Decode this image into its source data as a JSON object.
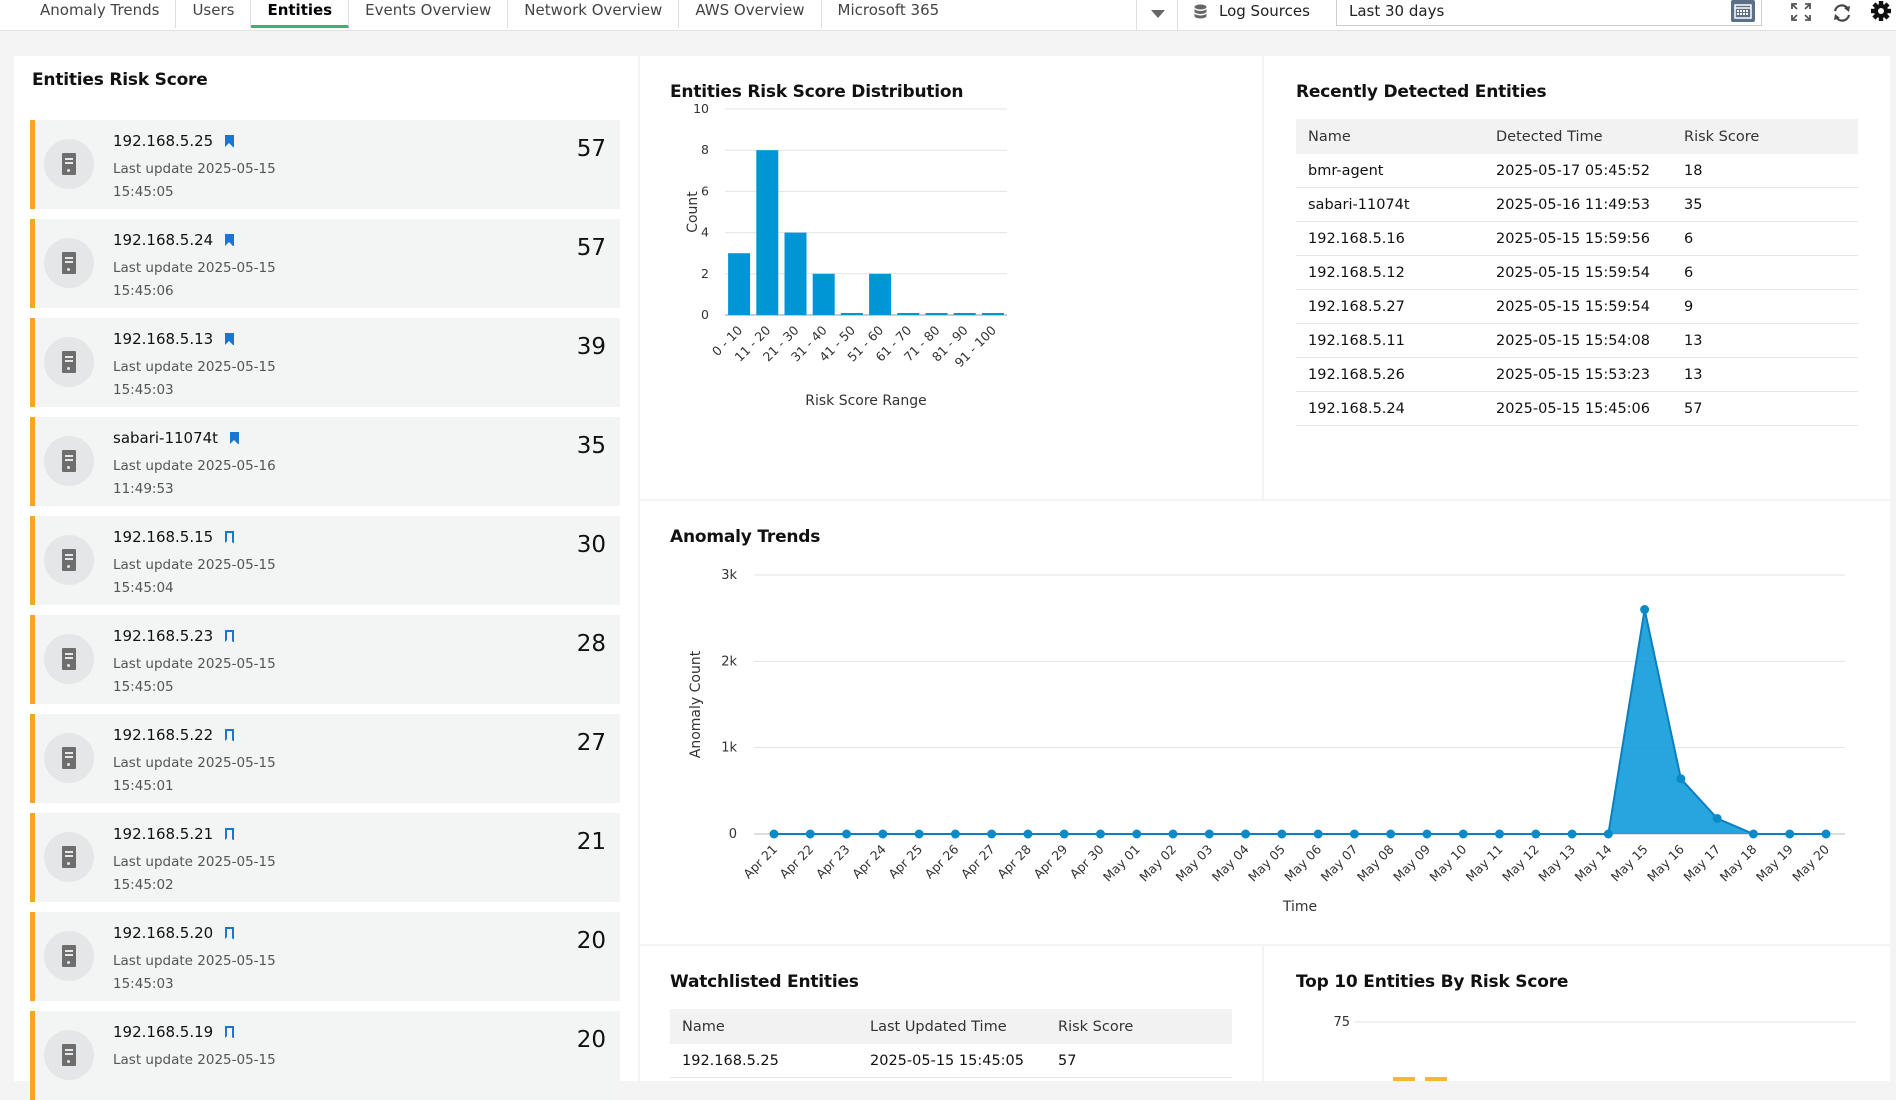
{
  "tabs": [
    {
      "label": "Anomaly Trends",
      "active": false
    },
    {
      "label": "Users",
      "active": false
    },
    {
      "label": "Entities",
      "active": true
    },
    {
      "label": "Events Overview",
      "active": false
    },
    {
      "label": "Network Overview",
      "active": false
    },
    {
      "label": "AWS Overview",
      "active": false
    },
    {
      "label": "Microsoft 365",
      "active": false
    }
  ],
  "toolbar": {
    "log_sources_label": "Log Sources",
    "date_range_value": "Last 30 days",
    "icons": [
      "chevron-down-icon",
      "database-icon",
      "calendar-icon",
      "expand-icon",
      "refresh-icon",
      "gear-icon"
    ]
  },
  "entities_risk_score": {
    "title": "Entities Risk Score",
    "accent_color": "#f5a623",
    "items": [
      {
        "name": "192.168.5.25",
        "bookmark": "filled",
        "update_label": "Last update 2025-05-15",
        "update_time": "15:45:05",
        "score": "57"
      },
      {
        "name": "192.168.5.24",
        "bookmark": "filled",
        "update_label": "Last update 2025-05-15",
        "update_time": "15:45:06",
        "score": "57"
      },
      {
        "name": "192.168.5.13",
        "bookmark": "filled",
        "update_label": "Last update 2025-05-15",
        "update_time": "15:45:03",
        "score": "39"
      },
      {
        "name": "sabari-11074t",
        "bookmark": "filled",
        "update_label": "Last update 2025-05-16",
        "update_time": "11:49:53",
        "score": "35"
      },
      {
        "name": "192.168.5.15",
        "bookmark": "outline",
        "update_label": "Last update 2025-05-15",
        "update_time": "15:45:04",
        "score": "30"
      },
      {
        "name": "192.168.5.23",
        "bookmark": "outline",
        "update_label": "Last update 2025-05-15",
        "update_time": "15:45:05",
        "score": "28"
      },
      {
        "name": "192.168.5.22",
        "bookmark": "outline",
        "update_label": "Last update 2025-05-15",
        "update_time": "15:45:01",
        "score": "27"
      },
      {
        "name": "192.168.5.21",
        "bookmark": "outline",
        "update_label": "Last update 2025-05-15",
        "update_time": "15:45:02",
        "score": "21"
      },
      {
        "name": "192.168.5.20",
        "bookmark": "outline",
        "update_label": "Last update 2025-05-15",
        "update_time": "15:45:03",
        "score": "20"
      },
      {
        "name": "192.168.5.19",
        "bookmark": "outline",
        "update_label": "Last update 2025-05-15",
        "update_time": "",
        "score": "20"
      }
    ]
  },
  "distribution": {
    "title": "Entities Risk Score Distribution"
  },
  "anomaly": {
    "title": "Anomaly Trends"
  },
  "recent": {
    "title": "Recently Detected Entities",
    "columns": [
      "Name",
      "Detected Time",
      "Risk Score"
    ],
    "rows": [
      [
        "bmr-agent",
        "2025-05-17 05:45:52",
        "18"
      ],
      [
        "sabari-11074t",
        "2025-05-16 11:49:53",
        "35"
      ],
      [
        "192.168.5.16",
        "2025-05-15 15:59:56",
        "6"
      ],
      [
        "192.168.5.12",
        "2025-05-15 15:59:54",
        "6"
      ],
      [
        "192.168.5.27",
        "2025-05-15 15:59:54",
        "9"
      ],
      [
        "192.168.5.11",
        "2025-05-15 15:54:08",
        "13"
      ],
      [
        "192.168.5.26",
        "2025-05-15 15:53:23",
        "13"
      ],
      [
        "192.168.5.24",
        "2025-05-15 15:45:06",
        "57"
      ]
    ]
  },
  "watchlisted": {
    "title": "Watchlisted Entities",
    "columns": [
      "Name",
      "Last Updated Time",
      "Risk Score"
    ],
    "rows": [
      [
        "192.168.5.25",
        "2025-05-15 15:45:05",
        "57"
      ]
    ]
  },
  "top10": {
    "title": "Top 10 Entities By Risk Score"
  },
  "chart_data": [
    {
      "type": "bar",
      "title": "Entities Risk Score Distribution",
      "xlabel": "Risk Score Range",
      "ylabel": "Count",
      "categories": [
        "0 - 10",
        "11 - 20",
        "21 - 30",
        "31 - 40",
        "41 - 50",
        "51 - 60",
        "61 - 70",
        "71 - 80",
        "81 - 90",
        "91 - 100"
      ],
      "values": [
        3,
        8,
        4,
        2,
        0,
        2,
        0,
        0,
        0,
        0
      ],
      "ylim": [
        0,
        10
      ],
      "yticks": [
        0,
        2,
        4,
        6,
        8,
        10
      ],
      "color": "#0096d6",
      "grid": true
    },
    {
      "type": "area",
      "title": "Anomaly Trends",
      "xlabel": "Time",
      "ylabel": "Anomaly Count",
      "x": [
        "Apr 21",
        "Apr 22",
        "Apr 23",
        "Apr 24",
        "Apr 25",
        "Apr 26",
        "Apr 27",
        "Apr 28",
        "Apr 29",
        "Apr 30",
        "May 01",
        "May 02",
        "May 03",
        "May 04",
        "May 05",
        "May 06",
        "May 07",
        "May 08",
        "May 09",
        "May 10",
        "May 11",
        "May 12",
        "May 13",
        "May 14",
        "May 15",
        "May 16",
        "May 17",
        "May 18",
        "May 19",
        "May 20"
      ],
      "values": [
        0,
        0,
        0,
        0,
        0,
        0,
        0,
        0,
        0,
        0,
        0,
        0,
        0,
        0,
        0,
        0,
        0,
        0,
        0,
        0,
        0,
        0,
        0,
        0,
        2600,
        640,
        180,
        0,
        0,
        0
      ],
      "ylim": [
        0,
        3000
      ],
      "yticks": [
        0,
        1000,
        2000,
        3000
      ],
      "ytick_labels": [
        "0",
        "1k",
        "2k",
        "3k"
      ],
      "color": "#0096d6",
      "grid": true
    },
    {
      "type": "bar",
      "title": "Top 10 Entities By Risk Score",
      "yticks_visible": [
        "75"
      ],
      "color": "#f5b82e"
    }
  ]
}
